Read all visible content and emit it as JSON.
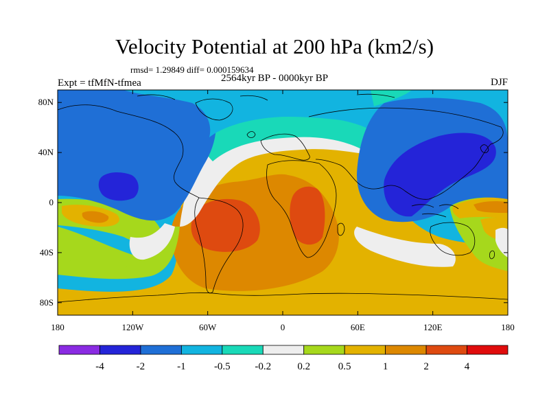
{
  "title": "Velocity Potential at 200 hPa (km2/s)",
  "stats": "rmsd= 1.29849 diff= 0.000159634",
  "experiment": "Expt = tfMfN-tfmea",
  "period": "2564kyr BP - 0000kyr BP",
  "season": "DJF",
  "map": {
    "lat_ticks": [
      {
        "value": 80,
        "label": "80N"
      },
      {
        "value": 40,
        "label": "40N"
      },
      {
        "value": 0,
        "label": "0"
      },
      {
        "value": -40,
        "label": "40S"
      },
      {
        "value": -80,
        "label": "80S"
      }
    ],
    "lon_ticks": [
      {
        "value": -180,
        "label": "180"
      },
      {
        "value": -120,
        "label": "120W"
      },
      {
        "value": -60,
        "label": "60W"
      },
      {
        "value": 0,
        "label": "0"
      },
      {
        "value": 60,
        "label": "60E"
      },
      {
        "value": 120,
        "label": "120E"
      },
      {
        "value": 180,
        "label": "180"
      }
    ]
  },
  "colorbar": {
    "colors": [
      "#8a2be2",
      "#2424d8",
      "#1f6fd6",
      "#12b4e0",
      "#19d9b8",
      "#eeeeee",
      "#a6d81c",
      "#e3b200",
      "#dd8800",
      "#de4a10",
      "#e00c0c"
    ],
    "labels": [
      "-4",
      "-2",
      "-1",
      "-0.5",
      "-0.2",
      "0.2",
      "0.5",
      "1",
      "2",
      "4"
    ]
  },
  "palette": {
    "c_m4": "#2424d8",
    "c_m2": "#1f6fd6",
    "c_m1": "#12b4e0",
    "c_m05": "#19d9b8",
    "c_0": "#eeeeee",
    "c_02": "#a6d81c",
    "c_05": "#e3b200",
    "c_1": "#dd8800",
    "c_2": "#de4a10"
  }
}
